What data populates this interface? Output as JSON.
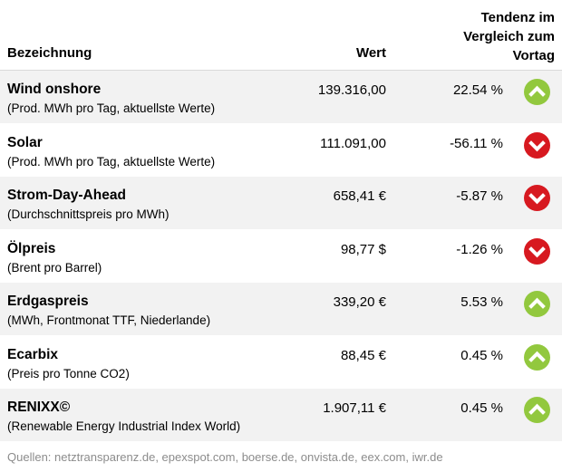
{
  "header": {
    "name_label": "Bezeichnung",
    "value_label": "Wert",
    "trend_label_line1": "Tendenz im",
    "trend_label_line2": "Vergleich zum",
    "trend_label_line3": "Vortag"
  },
  "colors": {
    "up": "#92c83e",
    "down": "#d71920",
    "row_shade": "#f2f2f2",
    "footer": "#8c8c8c"
  },
  "rows": [
    {
      "title": "Wind onshore",
      "subtitle": "(Prod. MWh pro Tag, aktuellste Werte)",
      "value": "139.316,00",
      "change": "22.54 %",
      "trend": "up",
      "icon": "arrow-up-icon"
    },
    {
      "title": "Solar",
      "subtitle": "(Prod. MWh pro Tag, aktuellste Werte)",
      "value": "111.091,00",
      "change": "-56.11 %",
      "trend": "down",
      "icon": "arrow-down-icon"
    },
    {
      "title": "Strom-Day-Ahead",
      "subtitle": "(Durchschnittspreis pro MWh)",
      "value": "658,41 €",
      "change": "-5.87 %",
      "trend": "down",
      "icon": "arrow-down-icon"
    },
    {
      "title": "Ölpreis",
      "subtitle": "(Brent pro Barrel)",
      "value": "98,77 $",
      "change": "-1.26 %",
      "trend": "down",
      "icon": "arrow-down-icon"
    },
    {
      "title": "Erdgaspreis",
      "subtitle": "(MWh, Frontmonat TTF, Niederlande)",
      "value": "339,20 €",
      "change": "5.53 %",
      "trend": "up",
      "icon": "arrow-up-icon"
    },
    {
      "title": "Ecarbix",
      "subtitle": "(Preis pro Tonne CO2)",
      "value": "88,45 €",
      "change": "0.45 %",
      "trend": "up",
      "icon": "arrow-up-icon"
    },
    {
      "title": "RENIXX©",
      "subtitle": "(Renewable Energy Industrial Index World)",
      "value": "1.907,11 €",
      "change": "0.45 %",
      "trend": "up",
      "icon": "arrow-up-icon"
    }
  ],
  "footer": "Quellen: netztransparenz.de, epexspot.com, boerse.de, onvista.de, eex.com, iwr.de"
}
